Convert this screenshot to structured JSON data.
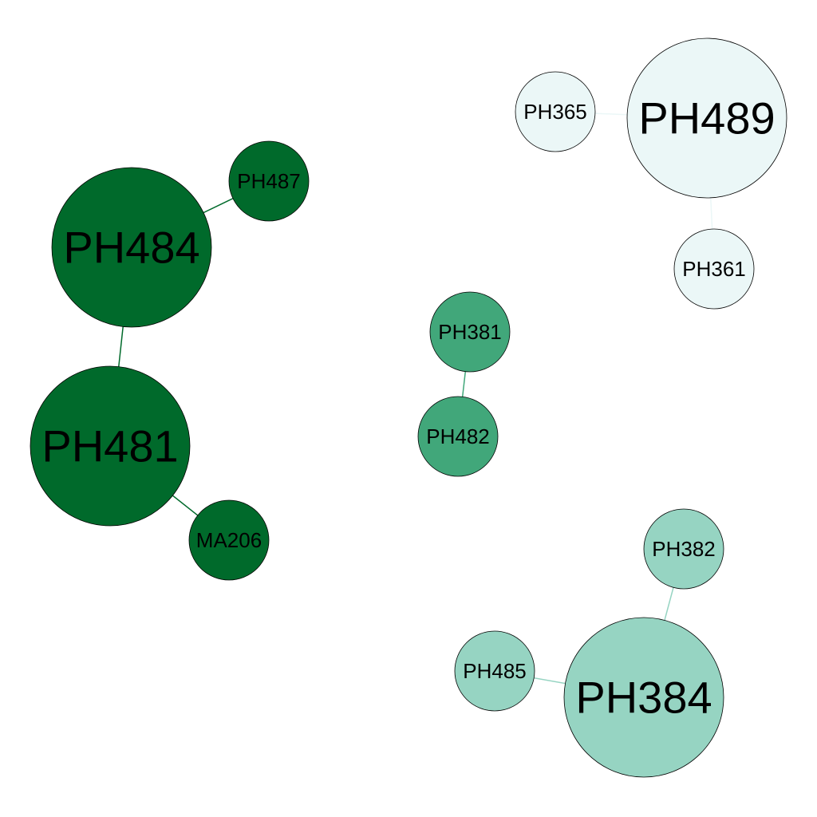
{
  "diagram": {
    "type": "network-graph",
    "background": "#ffffff",
    "node_outline_color": "#000000",
    "groups": [
      {
        "id": "g-dark",
        "color": "#006a2b"
      },
      {
        "id": "g-mid",
        "color": "#41a77a"
      },
      {
        "id": "g-light",
        "color": "#96d4c2"
      },
      {
        "id": "g-pale",
        "color": "#ebf7f7"
      }
    ],
    "nodes": [
      {
        "id": "PH484",
        "label": "PH484",
        "group": "g-dark",
        "size": "large"
      },
      {
        "id": "PH487",
        "label": "PH487",
        "group": "g-dark",
        "size": "small"
      },
      {
        "id": "PH481",
        "label": "PH481",
        "group": "g-dark",
        "size": "large"
      },
      {
        "id": "MA206",
        "label": "MA206",
        "group": "g-dark",
        "size": "small"
      },
      {
        "id": "PH381",
        "label": "PH381",
        "group": "g-mid",
        "size": "small"
      },
      {
        "id": "PH482",
        "label": "PH482",
        "group": "g-mid",
        "size": "small"
      },
      {
        "id": "PH382",
        "label": "PH382",
        "group": "g-light",
        "size": "small"
      },
      {
        "id": "PH485",
        "label": "PH485",
        "group": "g-light",
        "size": "small"
      },
      {
        "id": "PH384",
        "label": "PH384",
        "group": "g-light",
        "size": "large"
      },
      {
        "id": "PH365",
        "label": "PH365",
        "group": "g-pale",
        "size": "small"
      },
      {
        "id": "PH489",
        "label": "PH489",
        "group": "g-pale",
        "size": "large"
      },
      {
        "id": "PH361",
        "label": "PH361",
        "group": "g-pale",
        "size": "small"
      }
    ],
    "edges": [
      {
        "source": "PH484",
        "target": "PH487",
        "group": "g-dark"
      },
      {
        "source": "PH484",
        "target": "PH481",
        "group": "g-dark"
      },
      {
        "source": "PH481",
        "target": "MA206",
        "group": "g-dark"
      },
      {
        "source": "PH381",
        "target": "PH482",
        "group": "g-mid"
      },
      {
        "source": "PH384",
        "target": "PH382",
        "group": "g-light"
      },
      {
        "source": "PH384",
        "target": "PH485",
        "group": "g-light"
      },
      {
        "source": "PH489",
        "target": "PH365",
        "group": "g-pale"
      },
      {
        "source": "PH489",
        "target": "PH361",
        "group": "g-pale"
      }
    ]
  }
}
